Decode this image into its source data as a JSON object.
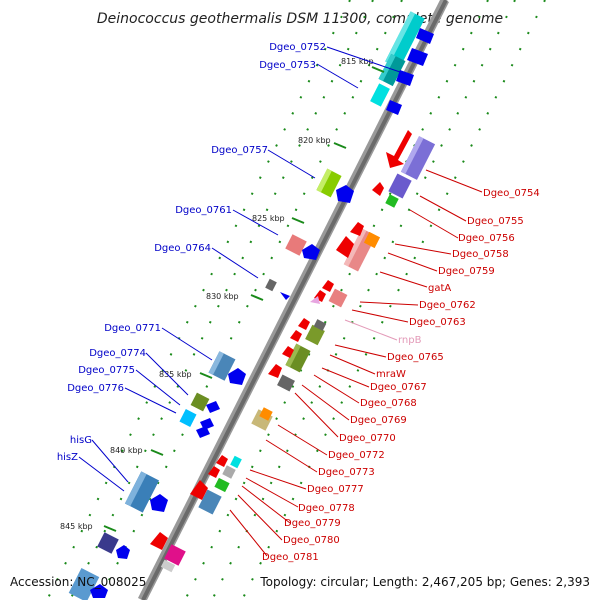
{
  "title": "Deinococcus geothermalis DSM 11300, complete genome",
  "footer": {
    "accession": "Accession: NC_008025",
    "summary": "Topology: circular; Length: 2,467,205 bp; Genes: 2,393"
  },
  "colors": {
    "left_label": "#0000c8",
    "right_label": "#cc0000",
    "rna_label": "#e39ab8",
    "backbone": "#777777"
  },
  "scale_ticks": [
    "815 kbp",
    "820 kbp",
    "825 kbp",
    "830 kbp",
    "835 kbp",
    "840 kbp",
    "845 kbp"
  ],
  "labels": [
    {
      "text": "Dgeo_0752"
    },
    {
      "text": "Dgeo_0753"
    },
    {
      "text": "Dgeo_0757"
    },
    {
      "text": "Dgeo_0761"
    },
    {
      "text": "Dgeo_0764"
    },
    {
      "text": "Dgeo_0771"
    },
    {
      "text": "Dgeo_0774"
    },
    {
      "text": "Dgeo_0775"
    },
    {
      "text": "Dgeo_0776"
    },
    {
      "text": "hisG"
    },
    {
      "text": "hisZ"
    },
    {
      "text": "Dgeo_0754"
    },
    {
      "text": "Dgeo_0755"
    },
    {
      "text": "Dgeo_0756"
    },
    {
      "text": "Dgeo_0758"
    },
    {
      "text": "Dgeo_0759"
    },
    {
      "text": "gatA"
    },
    {
      "text": "Dgeo_0762"
    },
    {
      "text": "Dgeo_0763"
    },
    {
      "text": "rnpB"
    },
    {
      "text": "Dgeo_0765"
    },
    {
      "text": "mraW"
    },
    {
      "text": "Dgeo_0767"
    },
    {
      "text": "Dgeo_0768"
    },
    {
      "text": "Dgeo_0769"
    },
    {
      "text": "Dgeo_0770"
    },
    {
      "text": "Dgeo_0772"
    },
    {
      "text": "Dgeo_0773"
    },
    {
      "text": "Dgeo_0777"
    },
    {
      "text": "Dgeo_0778"
    },
    {
      "text": "Dgeo_0779"
    },
    {
      "text": "Dgeo_0780"
    },
    {
      "text": "Dgeo_0781"
    }
  ]
}
